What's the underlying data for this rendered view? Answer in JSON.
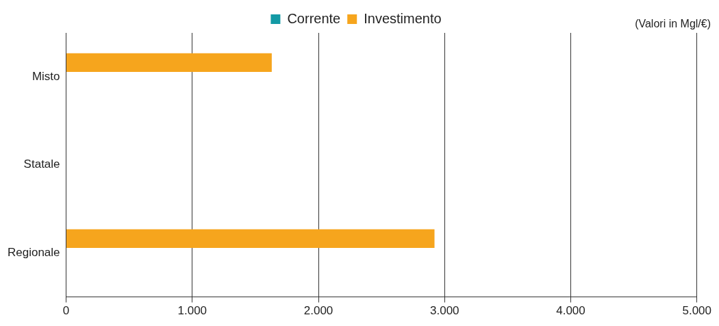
{
  "chart_data": {
    "type": "bar",
    "orientation": "horizontal",
    "categories": [
      "Misto",
      "Statale",
      "Regionale"
    ],
    "series": [
      {
        "name": "Corrente",
        "color": "#139aa5",
        "values": [
          null,
          null,
          null
        ]
      },
      {
        "name": "Investimento",
        "color": "#f6a51d",
        "values": [
          1630,
          null,
          2920
        ]
      }
    ],
    "xlim": [
      0,
      5000
    ],
    "xticks": [
      0,
      {
        "value": 1000,
        "label": "1.000"
      },
      {
        "value": 2000,
        "label": "2.000"
      },
      {
        "value": 3000,
        "label": "3.000"
      },
      {
        "value": 4000,
        "label": "4.000"
      },
      {
        "value": 5000,
        "label": "5.000"
      }
    ],
    "grid": "x",
    "legend": "top",
    "annotations": [
      "(Valori in Mgl/€)"
    ]
  }
}
